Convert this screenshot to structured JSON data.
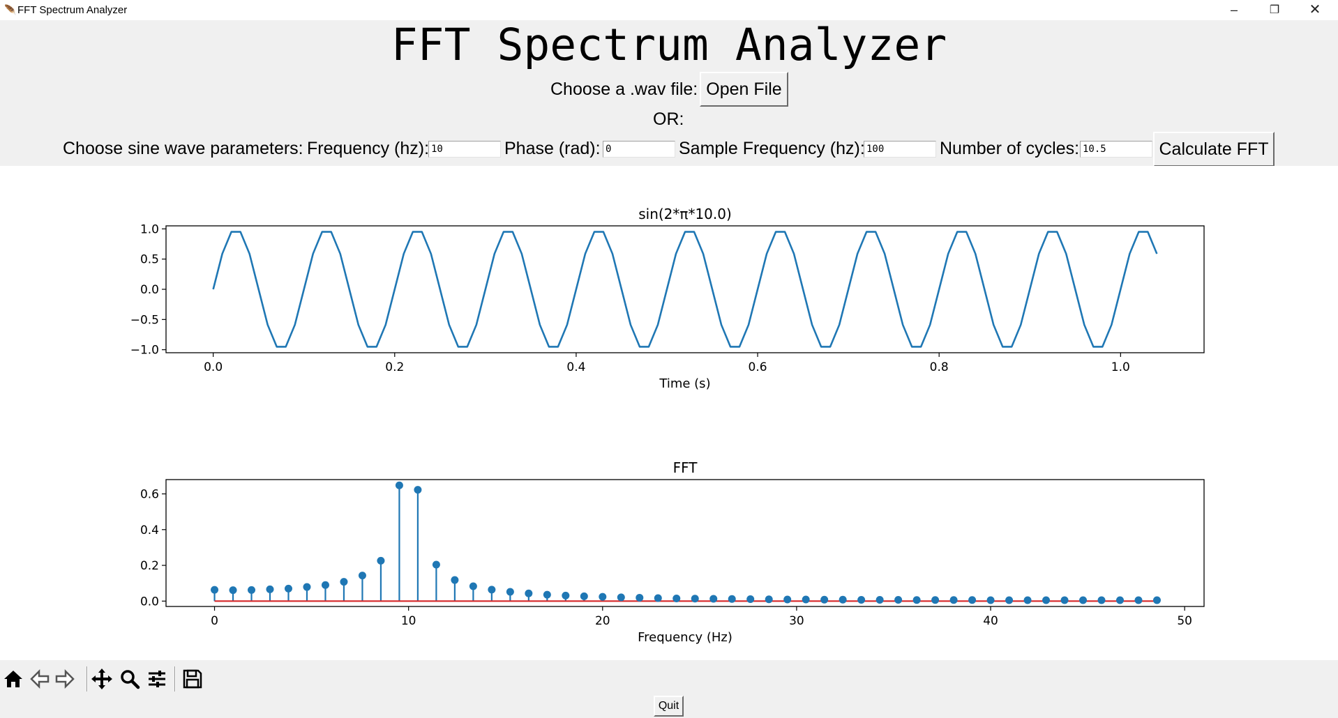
{
  "window": {
    "title": "FFT Spectrum Analyzer",
    "controls": [
      "–",
      "❐",
      "✕"
    ]
  },
  "header": {
    "title": "FFT Spectrum Analyzer",
    "wav_label": "Choose a .wav file:",
    "open_button": "Open File",
    "or_label": "OR:",
    "params_label": "Choose sine wave parameters:",
    "freq_label": "Frequency (hz):",
    "freq_value": "10",
    "phase_label": "Phase (rad):",
    "phase_value": "0",
    "sample_label": "Sample Frequency (hz):",
    "sample_value": "100",
    "cycles_label": "Number of cycles:",
    "cycles_value": "10.5",
    "calc_button": "Calculate FFT"
  },
  "toolbar": {
    "icons": [
      "home-icon",
      "back-arrow-icon",
      "forward-arrow-icon",
      "pan-icon",
      "zoom-icon",
      "configure-subplots-icon",
      "save-icon"
    ]
  },
  "footer": {
    "quit_button": "Quit"
  },
  "chart_data": [
    {
      "type": "line",
      "title": "sin(2*π*10.0)",
      "xlabel": "Time (s)",
      "ylabel": "",
      "color": "#1f77b4",
      "xlim": [
        -0.052,
        1.092
      ],
      "ylim": [
        -1.05,
        1.05
      ],
      "xticks": [
        0.0,
        0.2,
        0.4,
        0.6,
        0.8,
        1.0
      ],
      "xtick_labels": [
        "0.0",
        "0.2",
        "0.4",
        "0.6",
        "0.8",
        "1.0"
      ],
      "yticks": [
        1.0,
        0.5,
        0.0,
        -0.5,
        -1.0
      ],
      "ytick_labels": [
        "1.0",
        "0.5",
        "0.0",
        "−0.5",
        "−1.0"
      ],
      "sample_rate_hz": 100,
      "frequency_hz": 10,
      "x_start": 0.0,
      "x_end": 1.04,
      "grid": false
    },
    {
      "type": "stem",
      "title": "FFT",
      "xlabel": "Frequency (Hz)",
      "ylabel": "",
      "color": "#1f77b4",
      "baseline_color": "#d62728",
      "xlim": [
        -2.5,
        51.0
      ],
      "ylim": [
        -0.03,
        0.68
      ],
      "xticks": [
        0,
        10,
        20,
        30,
        40,
        50
      ],
      "xtick_labels": [
        "0",
        "10",
        "20",
        "30",
        "40",
        "50"
      ],
      "yticks": [
        0.6,
        0.4,
        0.2,
        0.0
      ],
      "ytick_labels": [
        "0.6",
        "0.4",
        "0.2",
        "0.0"
      ],
      "x_step": 0.9524,
      "values": [
        0.063,
        0.061,
        0.062,
        0.066,
        0.07,
        0.079,
        0.09,
        0.108,
        0.143,
        0.226,
        0.648,
        0.623,
        0.204,
        0.118,
        0.083,
        0.064,
        0.052,
        0.043,
        0.036,
        0.031,
        0.027,
        0.024,
        0.021,
        0.019,
        0.017,
        0.015,
        0.014,
        0.013,
        0.012,
        0.011,
        0.01,
        0.009,
        0.009,
        0.008,
        0.008,
        0.007,
        0.007,
        0.007,
        0.006,
        0.006,
        0.006,
        0.006,
        0.005,
        0.005,
        0.005,
        0.005,
        0.005,
        0.005,
        0.005,
        0.005,
        0.005,
        0.005
      ],
      "grid": false
    }
  ]
}
